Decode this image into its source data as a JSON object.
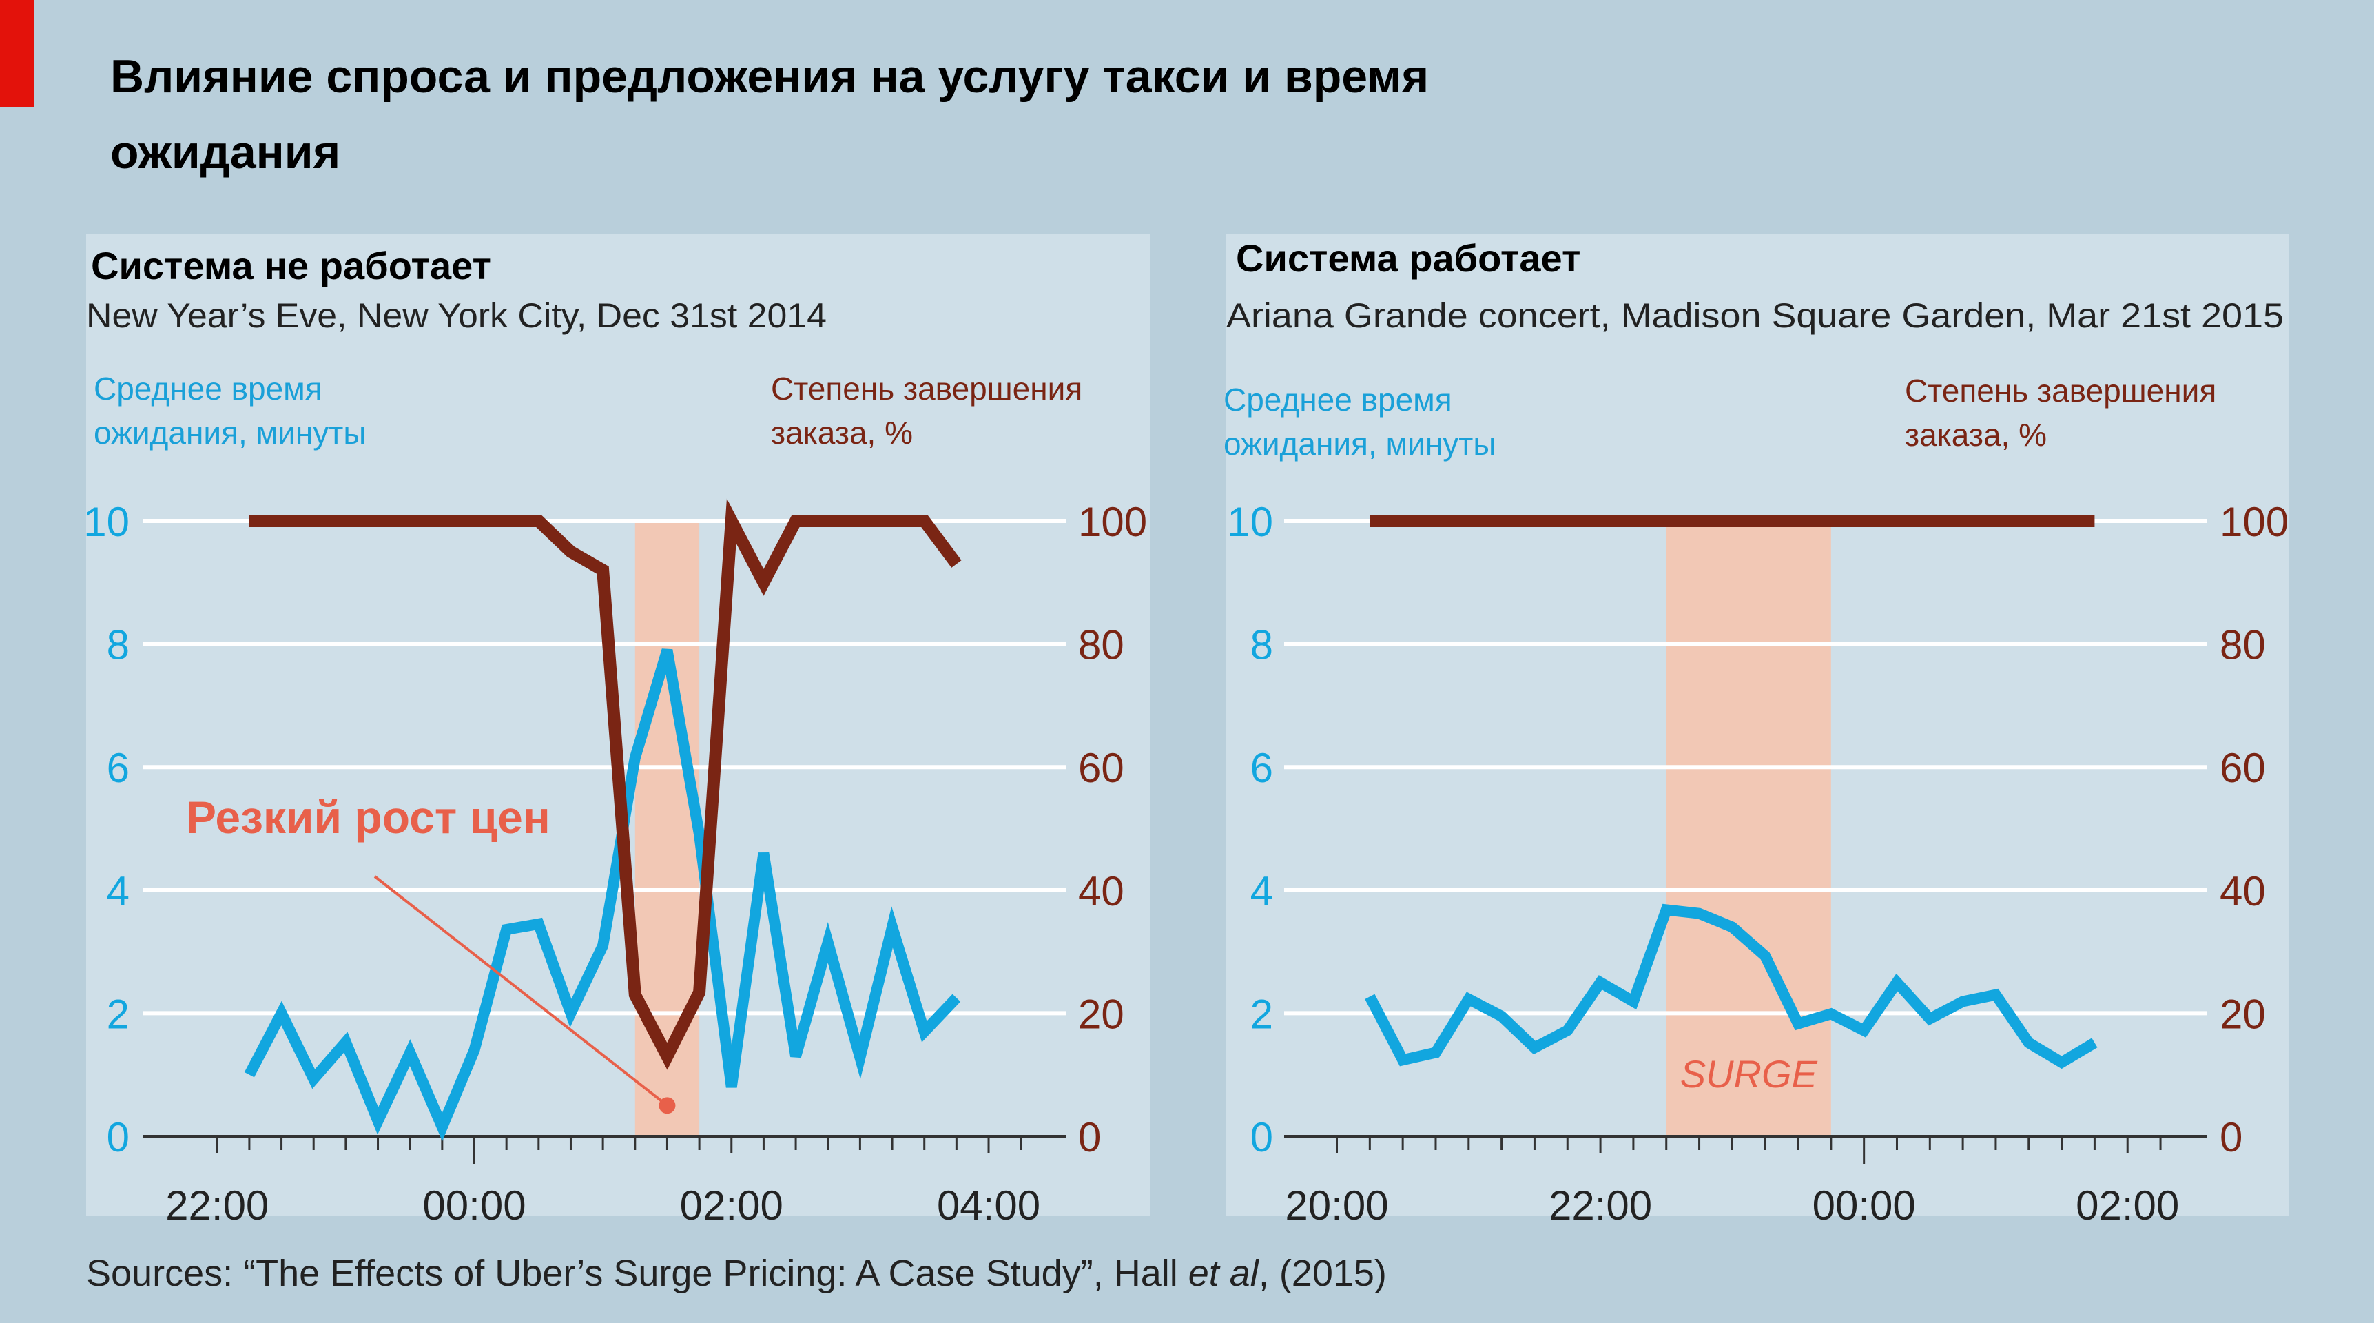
{
  "title_line1": "Влияние спроса и предложения на услугу такси и время",
  "title_line2": "ожидания",
  "colors": {
    "wait": "#12a6df",
    "completion": "#7a2514",
    "surge": "#f2c8b5",
    "annotation": "#e8604a",
    "panel": "#cfdfe8",
    "background": "#b9cfdb"
  },
  "sources": {
    "prefix": "Sources: “The Effects of Uber’s Surge Pricing: A Case Study”, Hall ",
    "italic": "et al",
    "suffix": ", (2015)"
  },
  "chart_data": [
    {
      "type": "line",
      "title": "Система не работает",
      "subtitle": "New Year’s Eve, New York City, Dec 31st 2014",
      "ylabel_left": [
        "Среднее время",
        "ожидания, минуты"
      ],
      "ylabel_right": [
        "Степень завершения",
        "заказа, %"
      ],
      "ylim_left": [
        0,
        10
      ],
      "yticks_left": [
        "0",
        "2",
        "4",
        "6",
        "8",
        "10"
      ],
      "ylim_right": [
        0,
        100
      ],
      "yticks_right": [
        "0",
        "20",
        "40",
        "60",
        "80",
        "100"
      ],
      "xlim_hours": [
        21.42,
        28.6
      ],
      "xticks": [
        {
          "h": 22,
          "label": "22:00"
        },
        {
          "h": 24,
          "label": "00:00"
        },
        {
          "h": 26,
          "label": "02:00"
        },
        {
          "h": 28,
          "label": "04:00"
        }
      ],
      "minor_tick_start": 22.25,
      "minor_tick_end": 28.4,
      "surge_band_hours": [
        25.25,
        25.75
      ],
      "annotation": {
        "text": "Резкий рост цен",
        "point_hours": 25.5,
        "point_value": 0.5
      },
      "series": [
        {
          "name": "Среднее время ожидания, минуты",
          "axis": "left",
          "x": [
            22.25,
            22.5,
            22.75,
            23,
            23.25,
            23.5,
            23.75,
            24,
            24.25,
            24.5,
            24.75,
            25,
            25.25,
            25.5,
            25.75,
            26,
            26.25,
            26.5,
            26.75,
            27,
            27.25,
            27.5,
            27.75
          ],
          "y": [
            1.0,
            2.0,
            0.93,
            1.53,
            0.25,
            1.36,
            0.15,
            1.4,
            3.36,
            3.45,
            2.0,
            3.1,
            6.15,
            7.9,
            4.9,
            0.8,
            4.6,
            1.3,
            3.15,
            1.28,
            3.4,
            1.7,
            2.25
          ]
        },
        {
          "name": "Степень завершения заказа, %",
          "axis": "right",
          "x": [
            22.25,
            24.5,
            24.75,
            25,
            25.25,
            25.5,
            25.75,
            26,
            26.25,
            26.5,
            27.5,
            27.75
          ],
          "y": [
            100,
            100,
            95,
            92,
            23,
            13,
            23.4,
            100,
            90,
            100,
            100,
            93
          ]
        }
      ]
    },
    {
      "type": "line",
      "title": "Система работает",
      "subtitle": "Ariana Grande concert, Madison Square Garden, Mar 21st 2015",
      "ylabel_left": [
        "Среднее время",
        "ожидания, минуты"
      ],
      "ylabel_right": [
        "Степень завершения",
        "заказа, %"
      ],
      "ylim_left": [
        0,
        10
      ],
      "yticks_left": [
        "0",
        "2",
        "4",
        "6",
        "8",
        "10"
      ],
      "ylim_right": [
        0,
        100
      ],
      "yticks_right": [
        "0",
        "20",
        "40",
        "60",
        "80",
        "100"
      ],
      "xlim_hours": [
        19.6,
        26.6
      ],
      "xticks": [
        {
          "h": 20,
          "label": "20:00"
        },
        {
          "h": 22,
          "label": "22:00"
        },
        {
          "h": 24,
          "label": "00:00"
        },
        {
          "h": 26,
          "label": "02:00"
        }
      ],
      "minor_tick_start": 20.25,
      "minor_tick_end": 26.4,
      "surge_band_hours": [
        22.5,
        23.75
      ],
      "surge_label": "SURGE",
      "series": [
        {
          "name": "Среднее время ожидания, минуты",
          "axis": "left",
          "x": [
            20.25,
            20.5,
            20.75,
            21,
            21.25,
            21.5,
            21.75,
            22,
            22.25,
            22.5,
            22.75,
            23,
            23.25,
            23.5,
            23.75,
            24,
            24.25,
            24.5,
            24.75,
            25,
            25.25,
            25.5,
            25.75
          ],
          "y": [
            2.27,
            1.24,
            1.36,
            2.23,
            1.95,
            1.44,
            1.72,
            2.5,
            2.19,
            3.68,
            3.62,
            3.4,
            2.93,
            1.83,
            1.99,
            1.72,
            2.5,
            1.91,
            2.19,
            2.3,
            1.52,
            1.2,
            1.52
          ]
        },
        {
          "name": "Степень завершения заказа, %",
          "axis": "right",
          "x": [
            20.25,
            25.75
          ],
          "y": [
            100,
            100
          ]
        }
      ]
    }
  ]
}
